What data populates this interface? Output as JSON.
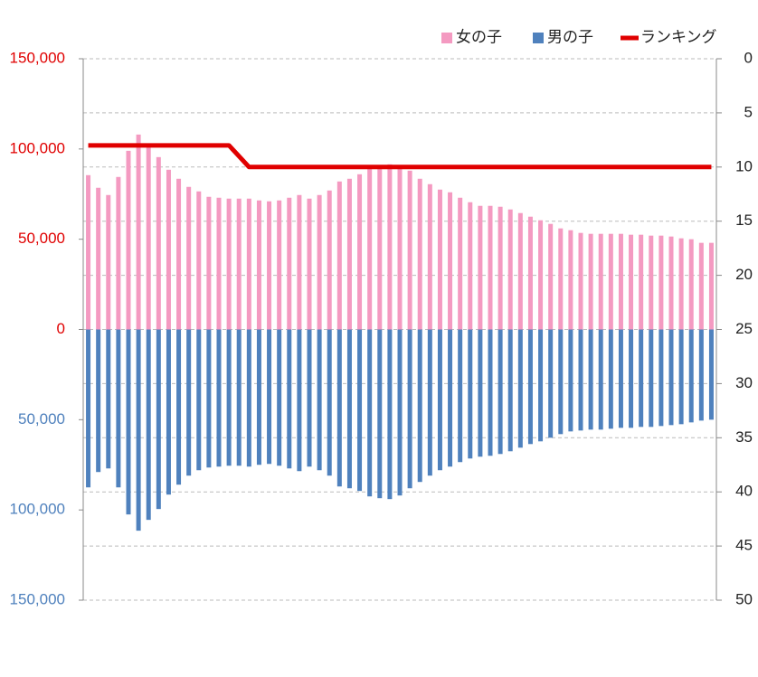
{
  "chart_data": {
    "type": "bar",
    "categories": [
      null,
      null,
      null,
      null,
      null,
      null,
      null,
      null,
      null,
      null,
      null,
      null,
      null,
      null,
      null,
      null,
      null,
      null,
      null,
      null,
      null,
      null,
      null,
      null,
      null,
      null,
      null,
      null,
      null,
      null,
      null,
      null,
      null,
      null,
      null,
      null,
      null,
      null,
      null,
      null,
      null,
      null,
      null,
      null,
      null,
      null,
      null,
      null,
      null,
      null,
      null,
      null,
      null,
      null,
      null,
      null,
      null,
      null,
      null,
      null,
      null,
      null,
      null
    ],
    "series": [
      {
        "name": "女の子",
        "type": "bar",
        "color": "#f49ac1",
        "values": [
          85500,
          78500,
          74500,
          84500,
          99000,
          108000,
          102500,
          95500,
          88500,
          83500,
          79000,
          76500,
          73500,
          73000,
          72500,
          72500,
          72500,
          71500,
          71000,
          71500,
          73000,
          74500,
          72500,
          74500,
          77000,
          82000,
          83500,
          86000,
          89000,
          91000,
          91500,
          91000,
          88000,
          83500,
          80500,
          77500,
          76000,
          73000,
          70500,
          68500,
          68500,
          68000,
          66500,
          64500,
          62500,
          60500,
          58500,
          56000,
          55000,
          53500,
          53000,
          53000,
          53000,
          53000,
          52500,
          52500,
          52000,
          52000,
          51500,
          50500,
          50000,
          48000,
          48000
        ]
      },
      {
        "name": "男の子",
        "type": "bar",
        "color": "#4f81bd",
        "values": [
          -87500,
          -79000,
          -77000,
          -87500,
          -102500,
          -111500,
          -105500,
          -99500,
          -91500,
          -86000,
          -81000,
          -78000,
          -76500,
          -76000,
          -75500,
          -75500,
          -76000,
          -75000,
          -74500,
          -75500,
          -77000,
          -78500,
          -76000,
          -78000,
          -81000,
          -87000,
          -88000,
          -89500,
          -92500,
          -93500,
          -94000,
          -92000,
          -88000,
          -84500,
          -81000,
          -78000,
          -76000,
          -73500,
          -71500,
          -70500,
          -70000,
          -69000,
          -67500,
          -65500,
          -63500,
          -62000,
          -60000,
          -58000,
          -56500,
          -56000,
          -55500,
          -55500,
          -55000,
          -54500,
          -54500,
          -54000,
          -54000,
          -53500,
          -53000,
          -52500,
          -51500,
          -50500,
          -50000
        ]
      },
      {
        "name": "ランキング",
        "type": "line",
        "axis": "y2",
        "color": "#e00000",
        "values": [
          8,
          8,
          8,
          8,
          8,
          8,
          8,
          8,
          8,
          8,
          8,
          8,
          8,
          8,
          8,
          9,
          10,
          10,
          10,
          10,
          10,
          10,
          10,
          10,
          10,
          10,
          10,
          10,
          10,
          10,
          10,
          10,
          10,
          10,
          10,
          10,
          10,
          10,
          10,
          10,
          10,
          10,
          10,
          10,
          10,
          10,
          10,
          10,
          10,
          10,
          10,
          10,
          10,
          10,
          10,
          10,
          10,
          10,
          10,
          10,
          10,
          10,
          10
        ]
      }
    ],
    "ylim": [
      -150000,
      150000
    ],
    "yticks": [
      {
        "value": -150000,
        "label": "150,000"
      },
      {
        "value": -100000,
        "label": "100,000"
      },
      {
        "value": -50000,
        "label": "50,000"
      },
      0,
      {
        "value": 50000,
        "label": "50,000"
      },
      {
        "value": 100000,
        "label": "100,000"
      },
      {
        "value": 150000,
        "label": "150,000"
      }
    ],
    "ytick_color_positive": "#e00000",
    "ytick_color_negative": "#4f81bd",
    "y2lim": [
      50,
      0
    ],
    "y2ticks": [
      0,
      5,
      10,
      15,
      20,
      25,
      30,
      35,
      40,
      45,
      50
    ],
    "grid": true,
    "legend": "top-right"
  }
}
